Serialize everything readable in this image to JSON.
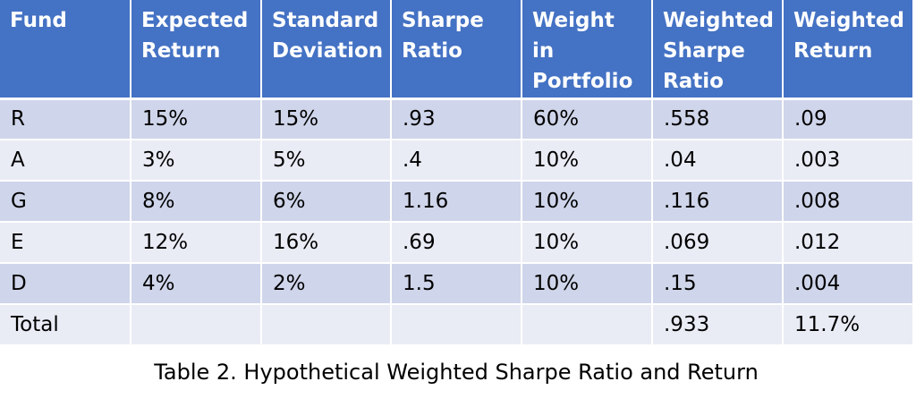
{
  "table": {
    "headers": [
      "Fund",
      "Expected Return",
      "Standard Deviation",
      "Sharpe Ratio",
      "Weight in Portfolio",
      "Weighted Sharpe Ratio",
      "Weighted Return"
    ],
    "rows": [
      [
        "R",
        "15%",
        "15%",
        ".93",
        "60%",
        ".558",
        ".09"
      ],
      [
        "A",
        "3%",
        "5%",
        ".4",
        "10%",
        ".04",
        ".003"
      ],
      [
        "G",
        "8%",
        "6%",
        "1.16",
        "10%",
        ".116",
        ".008"
      ],
      [
        "E",
        "12%",
        "16%",
        ".69",
        "10%",
        ".069",
        ".012"
      ],
      [
        "D",
        "4%",
        "2%",
        "1.5",
        "10%",
        ".15",
        ".004"
      ],
      [
        "Total",
        "",
        "",
        "",
        "",
        ".933",
        "11.7%"
      ]
    ]
  },
  "caption": "Table 2. Hypothetical Weighted Sharpe Ratio and Return",
  "colors": {
    "header_bg": "#4472c4",
    "header_text": "#ffffff",
    "row_band_dark": "#cfd5ea",
    "row_band_light": "#e9ebf5"
  }
}
